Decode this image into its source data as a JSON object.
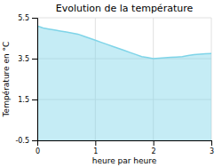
{
  "chart_data": {
    "type": "area",
    "title": "Evolution de la température",
    "x_label": "heure par heure",
    "y_label": "Température en °C",
    "x": [
      0,
      0.1,
      0.2,
      0.3,
      0.4,
      0.5,
      0.6,
      0.7,
      0.8,
      0.9,
      1.0,
      1.1,
      1.2,
      1.3,
      1.4,
      1.5,
      1.6,
      1.7,
      1.8,
      1.9,
      2.0,
      2.1,
      2.2,
      2.3,
      2.4,
      2.5,
      2.6,
      2.7,
      2.8,
      2.9,
      3.0
    ],
    "values": [
      5.1,
      5.0,
      4.95,
      4.9,
      4.85,
      4.8,
      4.75,
      4.7,
      4.6,
      4.5,
      4.4,
      4.3,
      4.2,
      4.1,
      4.0,
      3.9,
      3.8,
      3.7,
      3.6,
      3.55,
      3.5,
      3.52,
      3.54,
      3.56,
      3.58,
      3.6,
      3.65,
      3.7,
      3.72,
      3.74,
      3.75
    ],
    "color": "#7fd4e8",
    "xlim": [
      0,
      3
    ],
    "ylim": [
      -0.5,
      5.5
    ],
    "xticks": [
      0,
      1,
      2,
      3
    ],
    "yticks": [
      -0.5,
      1.5,
      3.5,
      5.5
    ],
    "grid": true
  }
}
